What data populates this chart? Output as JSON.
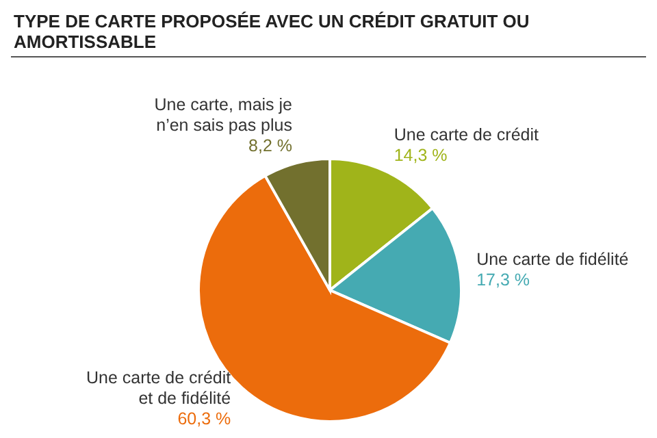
{
  "chart_data": {
    "type": "pie",
    "title": "TYPE DE CARTE PROPOSÉE AVEC UN CRÉDIT GRATUIT OU AMORTISSABLE",
    "categories": [
      "Une carte de crédit",
      "Une carte de fidélité",
      "Une carte de crédit et de fidélité",
      "Une carte, mais je n’en sais pas plus"
    ],
    "values": [
      14.3,
      17.3,
      60.3,
      8.2
    ],
    "value_labels": [
      "14,3 %",
      "17,3 %",
      "60,3 %",
      "8,2 %"
    ],
    "colors": [
      "#a0b41a",
      "#45aab2",
      "#ec6c0c",
      "#72702e"
    ],
    "legend": false
  }
}
